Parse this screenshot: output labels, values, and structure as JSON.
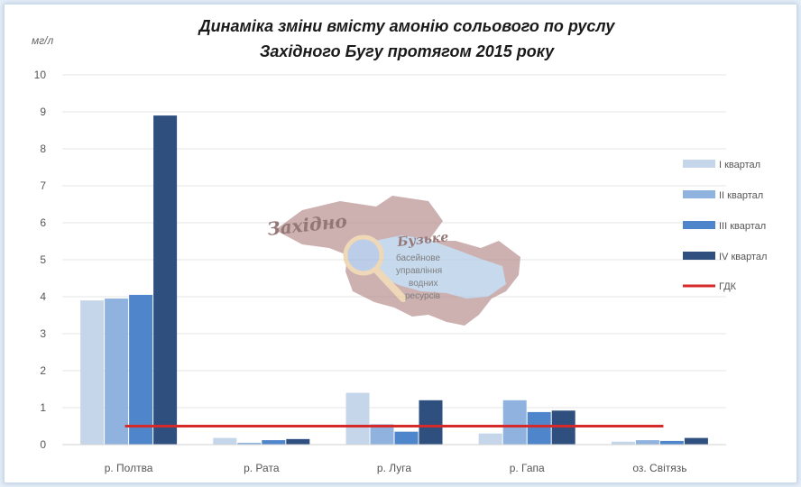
{
  "chart_data": {
    "type": "bar",
    "title_line1": "Динаміка зміни вмісту амонію сольового по руслу",
    "title_line2": "Західного Бугу протягом 2015 року",
    "ylabel": "мг/л",
    "ylim": [
      0,
      10
    ],
    "yticks": [
      "0",
      "1",
      "2",
      "3",
      "4",
      "5",
      "6",
      "7",
      "8",
      "9",
      "10"
    ],
    "categories": [
      "р. Полтва",
      "р. Рата",
      "р. Луга",
      "р. Гапа",
      "оз. Світязь"
    ],
    "series": [
      {
        "name": "I квартал",
        "color": "#c6d6ea",
        "values": [
          3.9,
          0.18,
          1.4,
          0.3,
          0.08
        ]
      },
      {
        "name": "II квартал",
        "color": "#8fb3de",
        "values": [
          3.95,
          0.05,
          0.55,
          1.2,
          0.12
        ]
      },
      {
        "name": "III квартал",
        "color": "#4f85cb",
        "values": [
          4.05,
          0.12,
          0.35,
          0.88,
          0.1
        ]
      },
      {
        "name": "IV квартал",
        "color": "#2f4f7f",
        "values": [
          8.9,
          0.15,
          1.2,
          0.92,
          0.18
        ]
      }
    ],
    "reference_line": {
      "name": "ГДК",
      "value": 0.5,
      "color": "#d62a2a"
    },
    "grid": true,
    "legend_position": "right"
  },
  "watermark": {
    "name_line1": "Західно",
    "name_line2": "Бузьке",
    "subtitle_lines": [
      "басейнове",
      "управління",
      "водних",
      "ресурсів"
    ]
  }
}
